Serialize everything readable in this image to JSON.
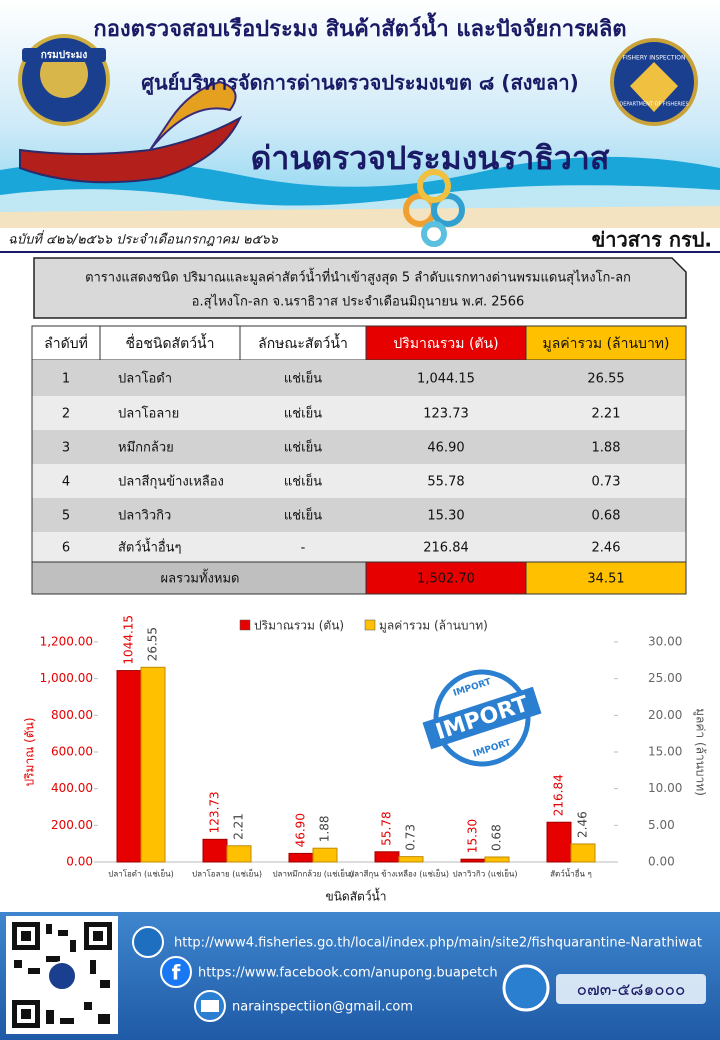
{
  "header": {
    "department": "กองตรวจสอบเรือประมง สินค้าสัตว์น้ำ และปัจจัยการผลิต",
    "center": "ศูนย์บริหารจัดการด่านตรวจประมงเขต ๘ (สงขลา)",
    "office": "ด่านตรวจประมงนราธิวาส",
    "issue": "ฉบับที่ ๔๒๖/๒๕๖๖ ประจำเดือนกรกฎาคม ๒๕๖๖",
    "brand": "ข่าวสาร กรป.",
    "logo_left": "กรมประมง",
    "logo_right": [
      "FISHERY INSPECTION",
      "DEPARTMENT OF FISHERIES"
    ]
  },
  "caption": [
    "ตารางแสดงชนิด ปริมาณและมูลค่าสัตว์น้ำที่นำเข้าสูงสุด 5 ลำดับแรกทางด่านพรมแดนสุไหงโก-ลก",
    "อ.สุไหงโก-ลก จ.นราธิวาส ประจำเดือนมิถุนายน พ.ศ. 2566"
  ],
  "table": {
    "columns": [
      "ลำดับที่",
      "ชื่อชนิดสัตว์น้ำ",
      "ลักษณะสัตว์น้ำ",
      "ปริมาณรวม (ตัน)",
      "มูลค่ารวม (ล้านบาท)"
    ],
    "rows": [
      [
        "1",
        "ปลาโอดำ",
        "แช่เย็น",
        "1,044.15",
        "26.55"
      ],
      [
        "2",
        "ปลาโอลาย",
        "แช่เย็น",
        "123.73",
        "2.21"
      ],
      [
        "3",
        "หมึกกล้วย",
        "แช่เย็น",
        "46.90",
        "1.88"
      ],
      [
        "4",
        "ปลาสีกุนข้างเหลือง",
        "แช่เย็น",
        "55.78",
        "0.73"
      ],
      [
        "5",
        "ปลาวิวกิว",
        "แช่เย็น",
        "15.30",
        "0.68"
      ],
      [
        "6",
        "สัตว์น้ำอื่นๆ",
        "-",
        "216.84",
        "2.46"
      ]
    ],
    "total": [
      "ผลรวมทั้งหมด",
      "1,502.70",
      "34.51"
    ]
  },
  "chart_data": {
    "type": "bar",
    "categories": [
      "ปลาโอดำ (แช่เย็น)",
      "ปลาโอลาย (แช่เย็น)",
      "ปลาหมึกกล้วย (แช่เย็น)",
      "ปลาสีกุน ข้างเหลือง (แช่เย็น)",
      "ปลาวิวกิว (แช่เย็น)",
      "สัตว์น้ำอื่น ๆ"
    ],
    "series": [
      {
        "name": "ปริมาณรวม (ตัน)",
        "color": "#e60000",
        "values": [
          1044.15,
          123.73,
          46.9,
          55.78,
          15.3,
          216.84
        ],
        "value_labels": [
          "1044.15",
          "123.73",
          "46.90",
          "55.78",
          "15.30",
          "216.84"
        ]
      },
      {
        "name": "มูลค่ารวม (ล้านบาท)",
        "color": "#ffc000",
        "axis": "y2",
        "values": [
          26.55,
          2.21,
          1.88,
          0.73,
          0.68,
          2.46
        ]
      }
    ],
    "ylabel": "ปริมาณ (ตัน)",
    "y2label": "มูลค่า (ล้านบาท)",
    "xlabel": "ขนิดสัตว์น้ำ",
    "ylim": [
      0,
      1200
    ],
    "yticks": [
      {
        "value": 0,
        "label": "0.00"
      },
      {
        "value": 200,
        "label": "200.00"
      },
      {
        "value": 400,
        "label": "400.00"
      },
      {
        "value": 600,
        "label": "600.00"
      },
      {
        "value": 800,
        "label": "800.00"
      },
      {
        "value": 1000,
        "label": "1,000.00"
      },
      {
        "value": 1200,
        "label": "1,200.00"
      }
    ],
    "y2lim": [
      0,
      30
    ],
    "y2ticks": [
      {
        "value": 0,
        "label": "0.00"
      },
      {
        "value": 5,
        "label": "5.00"
      },
      {
        "value": 10,
        "label": "10.00"
      },
      {
        "value": 15,
        "label": "15.00"
      },
      {
        "value": 20,
        "label": "20.00"
      },
      {
        "value": 25,
        "label": "25.00"
      },
      {
        "value": 30,
        "label": "30.00"
      }
    ],
    "grid": false,
    "legend": "top"
  },
  "stamp": [
    "IMPORT",
    "IMPORT",
    "IMPORT"
  ],
  "footer": {
    "website": "http://www4.fisheries.go.th/local/index.php/main/site2/fishquarantine-Narathiwat",
    "facebook": "https://www.facebook.com/anupong.buapetch",
    "email": "narainspectiion@gmail.com",
    "phone": "๐๗๓-๕๘๑๐๐๐"
  }
}
